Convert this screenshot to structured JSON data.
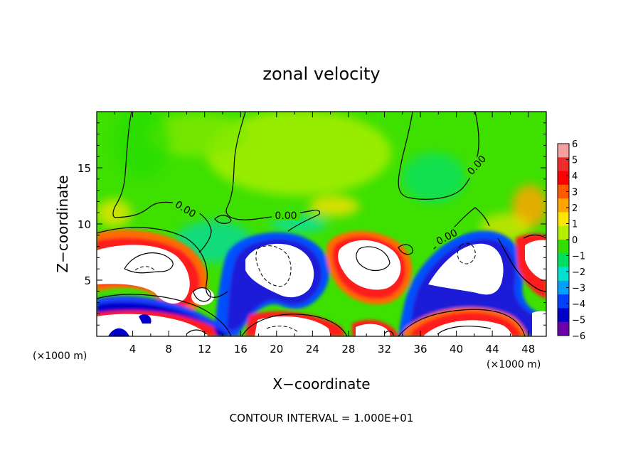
{
  "chart_data": {
    "type": "heatmap",
    "title": "zonal velocity",
    "xlabel": "X−coordinate",
    "ylabel": "Z−coordinate",
    "x_unit_left": "(×1000 m)",
    "x_unit_right": "(×1000 m)",
    "footer": "CONTOUR INTERVAL = 1.000E+01",
    "xlim": [
      0,
      50
    ],
    "ylim": [
      0,
      20
    ],
    "x_ticks": [
      "4",
      "8",
      "12",
      "16",
      "20",
      "24",
      "28",
      "32",
      "36",
      "40",
      "44",
      "48"
    ],
    "y_ticks": [
      "5",
      "10",
      "15"
    ],
    "contour_labels": [
      "0.00",
      "0.00",
      "0.00",
      "0.00"
    ],
    "colorbar": {
      "levels": [
        "6",
        "5",
        "4",
        "3",
        "2",
        "1",
        "0",
        "−1",
        "−2",
        "−3",
        "−4",
        "−5",
        "−6"
      ],
      "range": [
        -6,
        6
      ],
      "colors": [
        "#f4a0a0",
        "#ee2b2b",
        "#ff0000",
        "#ff5a00",
        "#ffa500",
        "#ffe600",
        "#b4ee00",
        "#33dd00",
        "#00e060",
        "#00e0d0",
        "#00a0ff",
        "#0040ff",
        "#0000c8",
        "#6a00a8"
      ]
    }
  }
}
